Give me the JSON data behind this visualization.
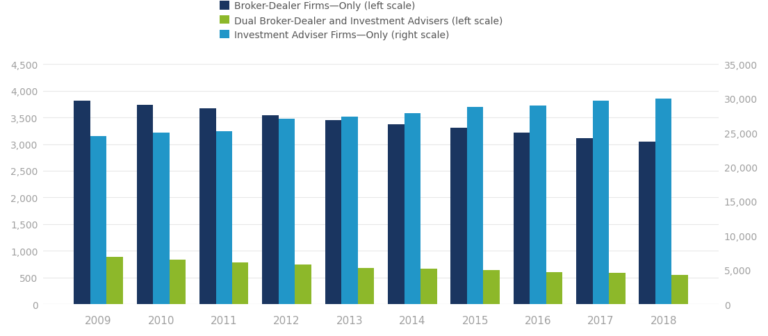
{
  "years": [
    2009,
    2010,
    2011,
    2012,
    2013,
    2014,
    2015,
    2016,
    2017,
    2018
  ],
  "broker_dealer_only": [
    3820,
    3740,
    3670,
    3540,
    3450,
    3370,
    3300,
    3220,
    3110,
    3040
  ],
  "dual_broker_dealer": [
    880,
    830,
    780,
    740,
    680,
    670,
    635,
    600,
    580,
    550
  ],
  "investment_adviser_only": [
    24500,
    25000,
    25200,
    27000,
    27300,
    27800,
    28700,
    29000,
    29700,
    30000
  ],
  "colors": {
    "broker_dealer": "#1a3560",
    "dual": "#8db82a",
    "investment_adviser": "#2196c8"
  },
  "left_ylim": [
    0,
    4500
  ],
  "right_ylim": [
    0,
    35000
  ],
  "left_yticks": [
    0,
    500,
    1000,
    1500,
    2000,
    2500,
    3000,
    3500,
    4000,
    4500
  ],
  "right_yticks": [
    0,
    5000,
    10000,
    15000,
    20000,
    25000,
    30000,
    35000
  ],
  "legend_labels": [
    "Broker-Dealer Firms—Only (left scale)",
    "Dual Broker-Dealer and Investment Advisers (left scale)",
    "Investment Adviser Firms—Only (right scale)"
  ],
  "bar_order": [
    "broker_dealer",
    "investment_adviser",
    "dual"
  ],
  "bar_width": 0.26,
  "figsize": [
    11.05,
    4.85
  ],
  "dpi": 100
}
